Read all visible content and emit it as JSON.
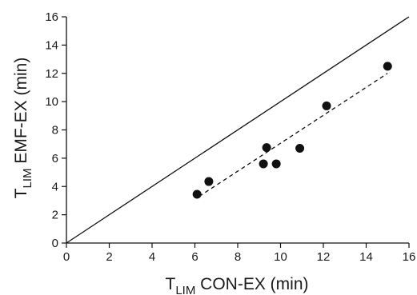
{
  "chart_data": {
    "type": "scatter",
    "title": "",
    "xlabel": {
      "main": "T",
      "sub": "LIM",
      "rest": " CON-EX (min)"
    },
    "ylabel": {
      "main": "T",
      "sub": "LIM",
      "rest": " EMF-EX (min)"
    },
    "xlim": [
      0,
      16
    ],
    "ylim": [
      0,
      16
    ],
    "xticks": [
      "0",
      "2",
      "4",
      "6",
      "8",
      "10",
      "12",
      "14",
      "16"
    ],
    "yticks": [
      "0",
      "2",
      "4",
      "6",
      "8",
      "10",
      "12",
      "14",
      "16"
    ],
    "grid": false,
    "legend": "none",
    "series": [
      {
        "points": [
          {
            "x": 6.1,
            "y": 3.45
          },
          {
            "x": 6.65,
            "y": 4.35
          },
          {
            "x": 9.2,
            "y": 5.6
          },
          {
            "x": 9.35,
            "y": 6.75
          },
          {
            "x": 9.8,
            "y": 5.6
          },
          {
            "x": 10.9,
            "y": 6.7
          },
          {
            "x": 12.15,
            "y": 9.7
          },
          {
            "x": 15.0,
            "y": 12.5
          }
        ]
      }
    ],
    "identity_line": {
      "from": [
        0,
        0
      ],
      "to": [
        16,
        16
      ],
      "style": "solid"
    },
    "regression_line": {
      "from": [
        6.2,
        3.3
      ],
      "to": [
        15.0,
        12.0
      ],
      "style": "dashed"
    },
    "colors": {
      "points": "#111111",
      "lines": "#111111",
      "axes": "#111111"
    }
  }
}
